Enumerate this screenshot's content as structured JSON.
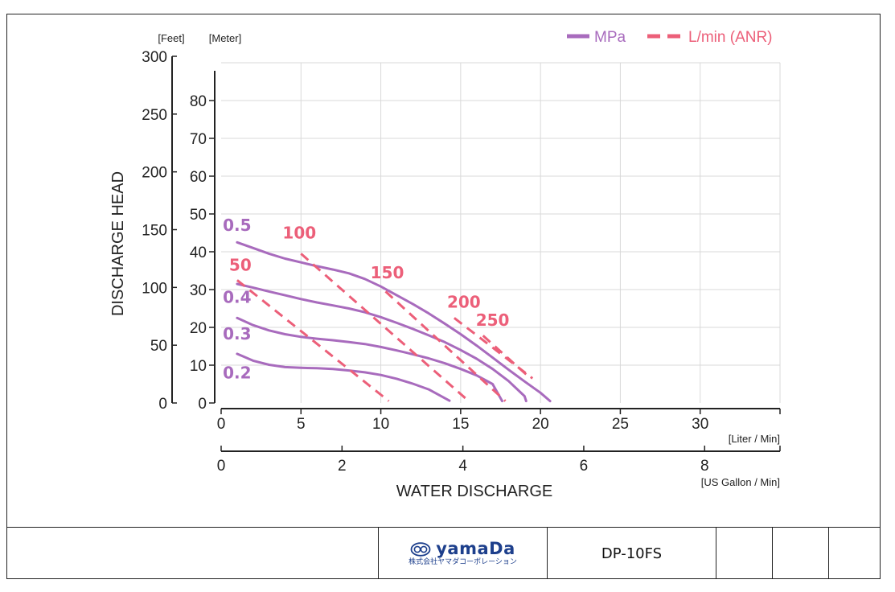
{
  "chart_data": {
    "type": "line",
    "ylabel": "DISCHARGE HEAD",
    "xlabel": "WATER DISCHARGE",
    "feet_axis_label": "[Feet]",
    "meter_axis_label": "[Meter]",
    "liter_axis_label": "[Liter / Min]",
    "gallon_axis_label": "[US Gallon / Min]",
    "x_ticks": [
      0,
      5,
      10,
      15,
      20,
      25,
      30
    ],
    "xlim": [
      0,
      35
    ],
    "gallon_ticks": [
      0,
      2,
      4,
      6,
      8
    ],
    "meter_ticks": [
      0,
      10,
      20,
      30,
      40,
      50,
      60,
      70,
      80
    ],
    "ylim": [
      0,
      90
    ],
    "feet_ticks": [
      0,
      50,
      100,
      150,
      200,
      250,
      300
    ],
    "grid": true,
    "legend_position": "top-right",
    "legend": [
      {
        "label": "MPa",
        "style": "solid",
        "color": "#a86bbd"
      },
      {
        "label": "L/min (ANR)",
        "style": "dashed",
        "color": "#ec5f79"
      }
    ],
    "series": [
      {
        "name": "0.5",
        "kind": "pressure",
        "color": "#a86bbd",
        "x": [
          1,
          2,
          3,
          4,
          5,
          6,
          7,
          8,
          9,
          10,
          11,
          12,
          13,
          14,
          15,
          16,
          17,
          18,
          19,
          20,
          20.6
        ],
        "y": [
          42.5,
          41,
          39.5,
          38.2,
          37.2,
          36.2,
          35.3,
          34.3,
          32.8,
          30.8,
          28.5,
          26.2,
          23.7,
          21,
          18.2,
          15.2,
          12,
          8.8,
          5.7,
          2.7,
          0.5
        ]
      },
      {
        "name": "0.4",
        "kind": "pressure",
        "color": "#a86bbd",
        "x": [
          1,
          2,
          3,
          4,
          5,
          6,
          7,
          8,
          9,
          10,
          11,
          12,
          13,
          14,
          15,
          16,
          17,
          18,
          19,
          19.1
        ],
        "y": [
          31.5,
          30.5,
          29.5,
          28.5,
          27.5,
          26.6,
          25.8,
          25,
          24,
          22.7,
          21.2,
          19.6,
          17.9,
          16.1,
          14,
          11.7,
          9,
          5.8,
          1.8,
          0.5
        ]
      },
      {
        "name": "0.3",
        "kind": "pressure",
        "color": "#a86bbd",
        "x": [
          1,
          2,
          3,
          4,
          5,
          6,
          7,
          8,
          9,
          10,
          11,
          12,
          13,
          14,
          15,
          16,
          17,
          17.6
        ],
        "y": [
          22.5,
          20.6,
          19.2,
          18.2,
          17.5,
          17,
          16.6,
          16.1,
          15.6,
          14.8,
          13.9,
          12.9,
          11.8,
          10.5,
          9,
          7.3,
          5,
          0.5
        ]
      },
      {
        "name": "0.2",
        "kind": "pressure",
        "color": "#a86bbd",
        "x": [
          1,
          2,
          3,
          4,
          5,
          6,
          7,
          8,
          9,
          10,
          11,
          12,
          13,
          14.3
        ],
        "y": [
          13,
          11.2,
          10.1,
          9.5,
          9.3,
          9.2,
          9,
          8.6,
          8.1,
          7.4,
          6.4,
          5.1,
          3.6,
          0.6
        ]
      },
      {
        "name": "50",
        "kind": "airflow",
        "color": "#ec5f79",
        "x": [
          1,
          10.5
        ],
        "y": [
          32.5,
          0.5
        ]
      },
      {
        "name": "100",
        "kind": "airflow",
        "color": "#ec5f79",
        "x": [
          5,
          15.5
        ],
        "y": [
          39.5,
          0.5
        ]
      },
      {
        "name": "150",
        "kind": "airflow",
        "color": "#ec5f79",
        "x": [
          10.3,
          17.8
        ],
        "y": [
          29.5,
          0.5
        ]
      },
      {
        "name": "200",
        "kind": "airflow",
        "color": "#ec5f79",
        "x": [
          14.6,
          19.5
        ],
        "y": [
          22.5,
          6.5
        ]
      },
      {
        "name": "250",
        "kind": "airflow",
        "color": "#ec5f79",
        "x": [
          16.4,
          19.3
        ],
        "y": [
          17.8,
          6.8
        ]
      }
    ],
    "series_labels": [
      {
        "text": "0.5",
        "color": "#a86bbd",
        "x": 1.0,
        "y": 45.5
      },
      {
        "text": "0.4",
        "color": "#a86bbd",
        "x": 1.0,
        "y": 26.5
      },
      {
        "text": "0.3",
        "color": "#a86bbd",
        "x": 1.0,
        "y": 16.8
      },
      {
        "text": "0.2",
        "color": "#a86bbd",
        "x": 1.0,
        "y": 6.5
      },
      {
        "text": "50",
        "color": "#ec5f79",
        "x": 1.2,
        "y": 35.0
      },
      {
        "text": "100",
        "color": "#ec5f79",
        "x": 4.9,
        "y": 43.5
      },
      {
        "text": "150",
        "color": "#ec5f79",
        "x": 10.4,
        "y": 33.0
      },
      {
        "text": "200",
        "color": "#ec5f79",
        "x": 15.2,
        "y": 25.2
      },
      {
        "text": "250",
        "color": "#ec5f79",
        "x": 17.0,
        "y": 20.4
      }
    ]
  },
  "footer": {
    "logo_text": "yamaDa",
    "logo_subtext": "株式会社ヤマダコーポレーション",
    "model": "DP-10FS"
  }
}
